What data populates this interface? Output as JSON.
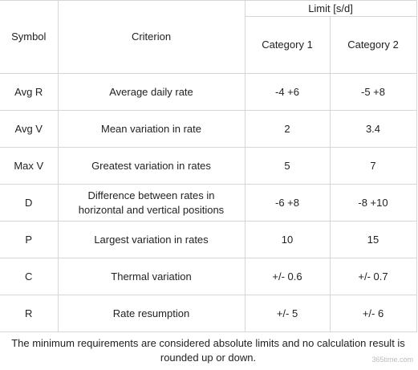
{
  "table": {
    "header": {
      "symbol": "Symbol",
      "criterion": "Criterion",
      "limit": "Limit [s/d]",
      "categories": [
        "Category 1",
        "Category 2"
      ]
    },
    "rows": [
      [
        "Avg R",
        "Average daily rate",
        "-4 +6",
        "-5 +8"
      ],
      [
        "Avg V",
        "Mean variation in rate",
        "2",
        "3.4"
      ],
      [
        "Max V",
        "Greatest variation in rates",
        "5",
        "7"
      ],
      [
        "D",
        "Difference between rates in horizontal and vertical positions",
        "-6 +8",
        "-8 +10"
      ],
      [
        "P",
        "Largest variation in rates",
        "10",
        "15"
      ],
      [
        "C",
        "Thermal variation",
        "+/- 0.6",
        "+/- 0.7"
      ],
      [
        "R",
        "Rate resumption",
        "+/- 5",
        "+/- 6"
      ]
    ],
    "footnote": "The minimum requirements are considered absolute limits and no calculation result is rounded up or down."
  },
  "watermark": "365time.com"
}
